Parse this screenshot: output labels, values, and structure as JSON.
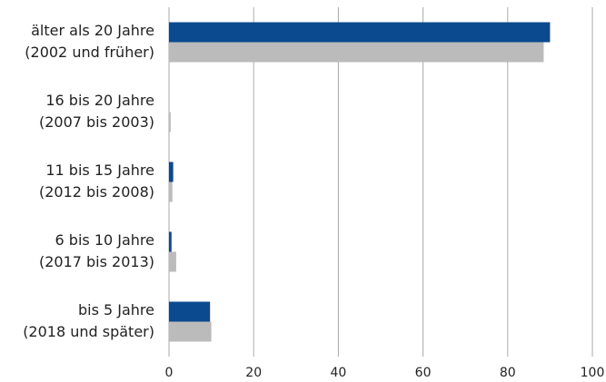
{
  "chart_data": {
    "type": "bar",
    "orientation": "horizontal",
    "categories": [
      [
        "älter als 20 Jahre",
        "(2002 und früher)"
      ],
      [
        "16 bis 20 Jahre",
        "(2007 bis 2003)"
      ],
      [
        "11 bis 15 Jahre",
        "(2012 bis 2008)"
      ],
      [
        "6 bis 10 Jahre",
        "(2017 bis 2013)"
      ],
      [
        "bis 5 Jahre",
        "(2018 und später)"
      ]
    ],
    "series": [
      {
        "color": "#0b4a8f",
        "values": [
          90,
          0,
          1,
          0.6,
          9.7
        ]
      },
      {
        "color": "#bbbbbb",
        "values": [
          88.5,
          0.4,
          0.8,
          1.7,
          10
        ]
      }
    ],
    "xlim": [
      0,
      100
    ],
    "xticks": [
      0,
      20,
      40,
      60,
      80,
      100
    ],
    "grid": true
  }
}
